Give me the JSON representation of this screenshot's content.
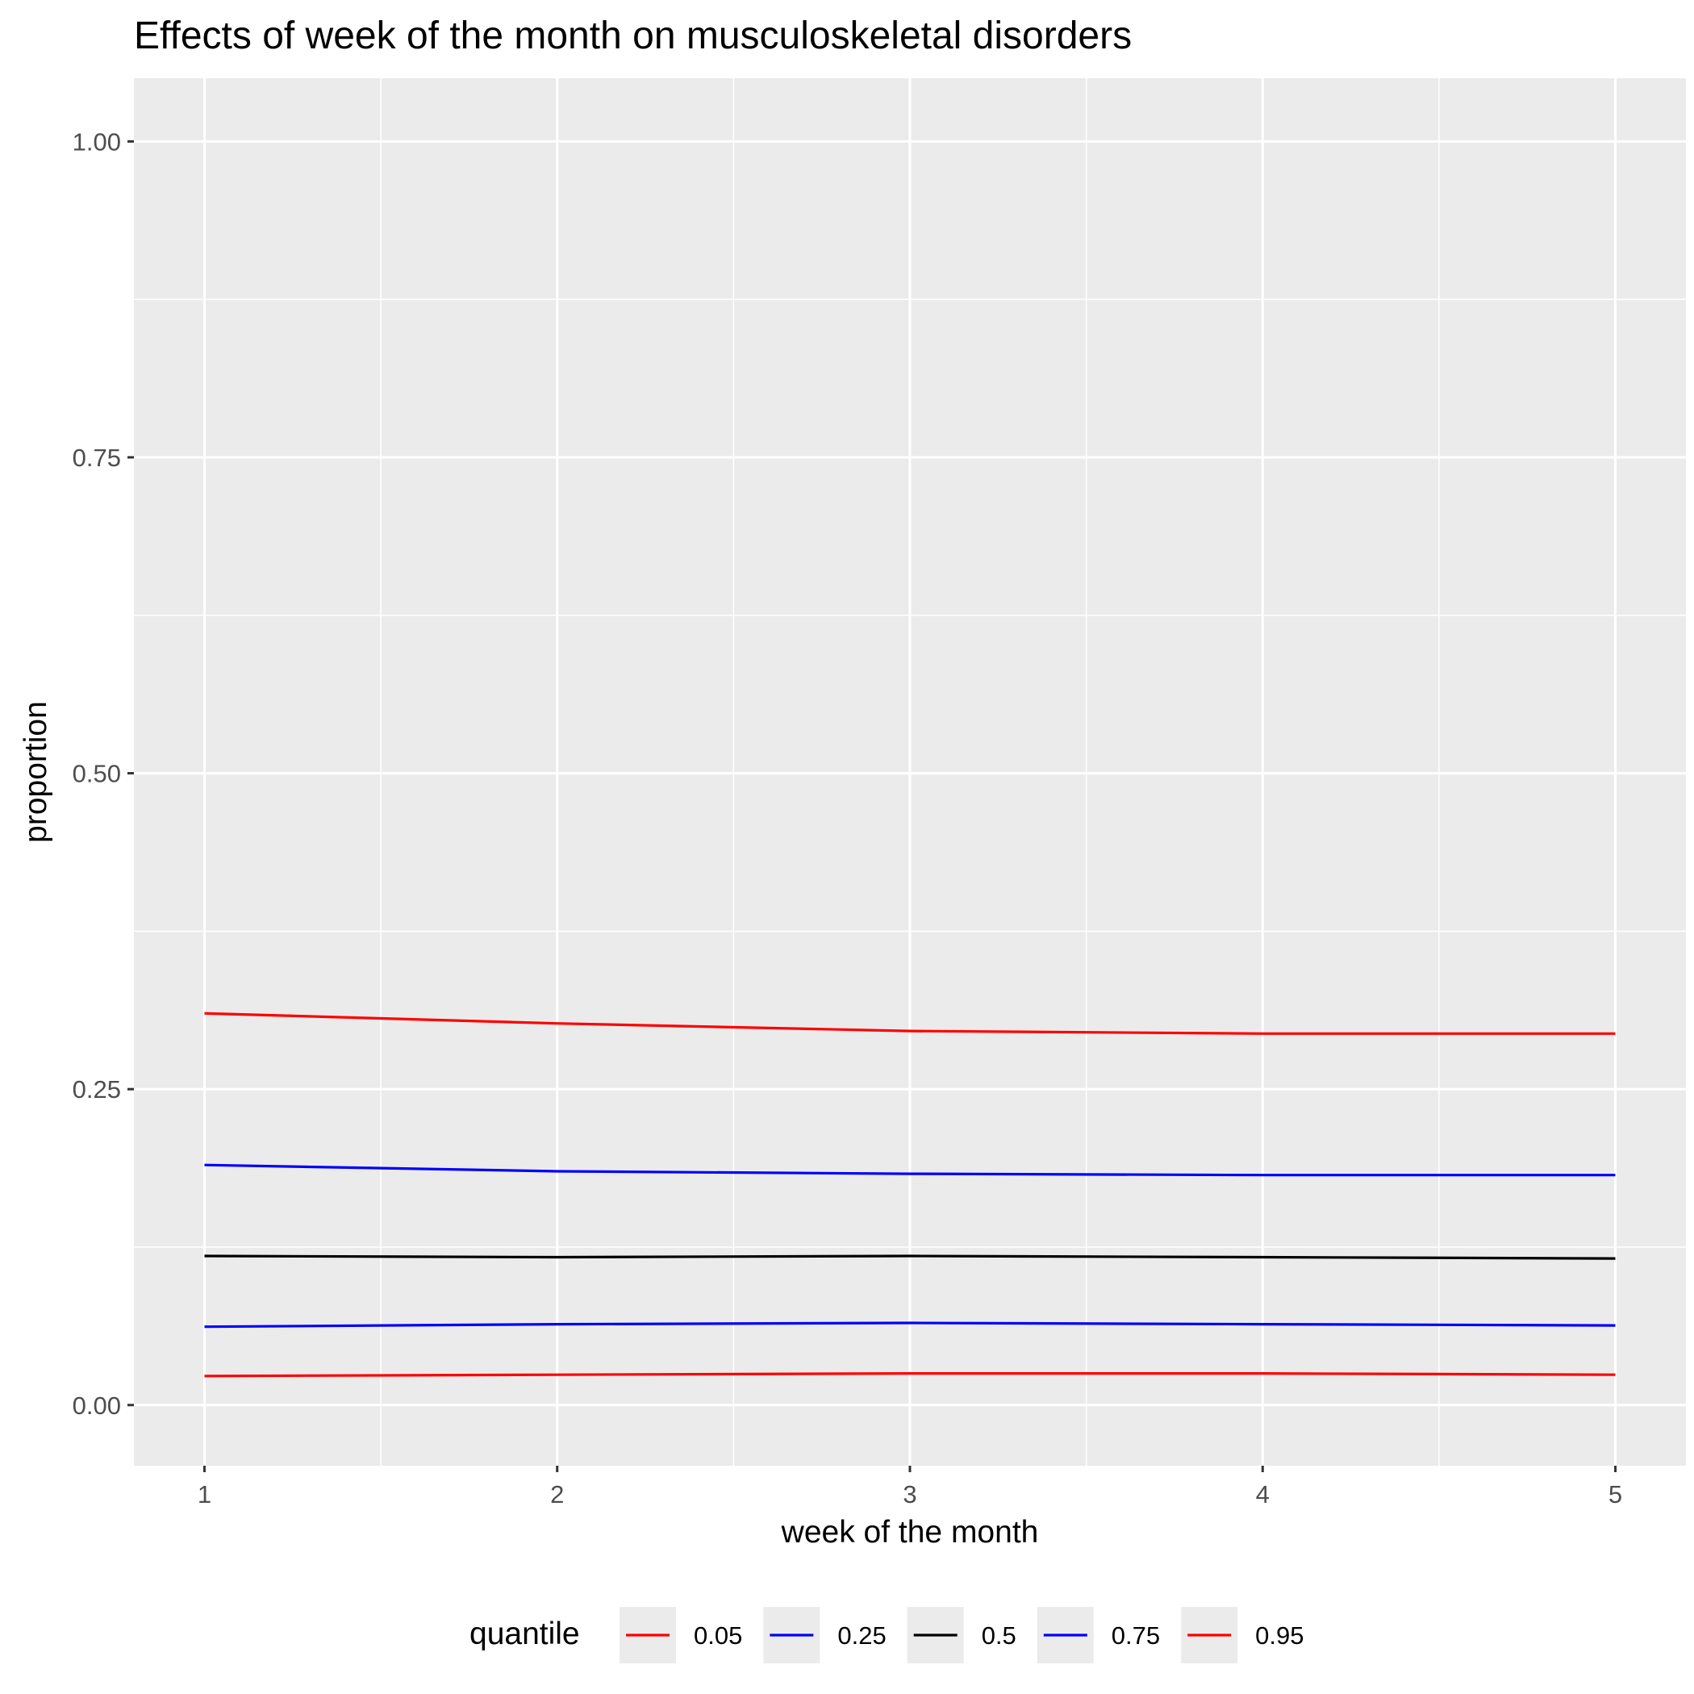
{
  "chart_data": {
    "type": "line",
    "title": "Effects of week of the month on musculoskeletal disorders",
    "xlabel": "week of the month",
    "ylabel": "proportion",
    "x": [
      1,
      2,
      3,
      4,
      5
    ],
    "x_ticks": [
      "1",
      "2",
      "3",
      "4",
      "5"
    ],
    "y_ticks": [
      "0.00",
      "0.25",
      "0.50",
      "0.75",
      "1.00"
    ],
    "xlim": [
      0.8,
      5.2
    ],
    "ylim": [
      -0.048,
      1.05
    ],
    "grid": true,
    "legend": {
      "title": "quantile",
      "position": "bottom"
    },
    "series": [
      {
        "name": "0.05",
        "color": "#ff0000",
        "values": [
          0.023,
          0.024,
          0.025,
          0.025,
          0.024
        ]
      },
      {
        "name": "0.25",
        "color": "#0000ff",
        "values": [
          0.062,
          0.064,
          0.065,
          0.064,
          0.063
        ]
      },
      {
        "name": "0.5",
        "color": "#000000",
        "values": [
          0.118,
          0.117,
          0.118,
          0.117,
          0.116
        ]
      },
      {
        "name": "0.75",
        "color": "#0000ff",
        "values": [
          0.19,
          0.185,
          0.183,
          0.182,
          0.182
        ]
      },
      {
        "name": "0.95",
        "color": "#ff0000",
        "values": [
          0.31,
          0.302,
          0.296,
          0.294,
          0.294
        ]
      }
    ]
  }
}
